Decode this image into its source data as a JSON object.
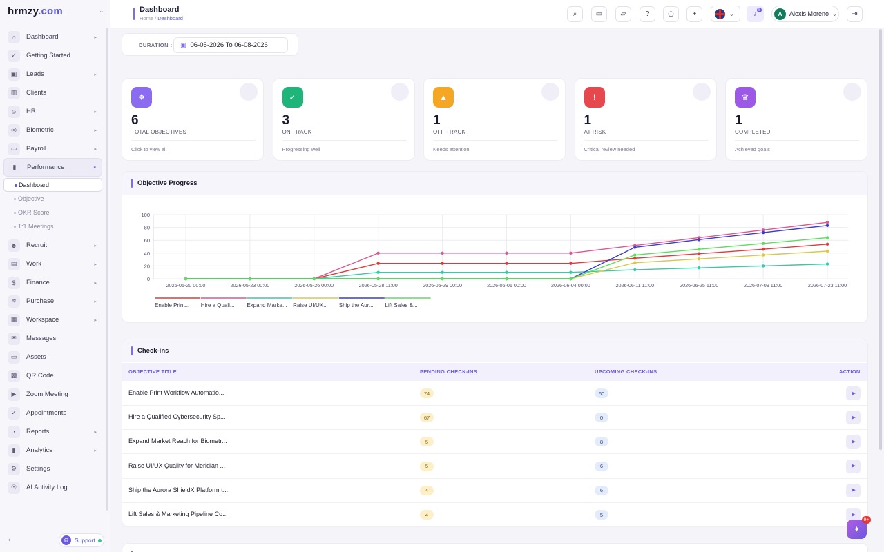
{
  "brand": {
    "name": "hrmzy",
    "domain": ".com"
  },
  "sidebar": {
    "items": [
      {
        "label": "Dashboard",
        "icon": "home-icon",
        "glyph": "⌂",
        "arrow": true
      },
      {
        "label": "Getting Started",
        "icon": "check-circle-icon",
        "glyph": "✓",
        "arrow": false
      },
      {
        "label": "Leads",
        "icon": "contact-card-icon",
        "glyph": "▣",
        "arrow": true
      },
      {
        "label": "Clients",
        "icon": "building-icon",
        "glyph": "▥",
        "arrow": false
      },
      {
        "label": "HR",
        "icon": "users-icon",
        "glyph": "☺",
        "arrow": true
      },
      {
        "label": "Biometric",
        "icon": "fingerprint-icon",
        "glyph": "◎",
        "arrow": true
      },
      {
        "label": "Payroll",
        "icon": "wallet-icon",
        "glyph": "▭",
        "arrow": true
      },
      {
        "label": "Performance",
        "icon": "bar-chart-icon",
        "glyph": "▮",
        "arrow": true,
        "active": true
      }
    ],
    "sub_items": [
      {
        "label": "Dashboard",
        "active": true
      },
      {
        "label": "Objective"
      },
      {
        "label": "OKR Score"
      },
      {
        "label": "1:1 Meetings"
      }
    ],
    "items_after": [
      {
        "label": "Recruit",
        "icon": "recruit-icon",
        "glyph": "☻",
        "arrow": true
      },
      {
        "label": "Work",
        "icon": "briefcase-icon",
        "glyph": "▤",
        "arrow": true
      },
      {
        "label": "Finance",
        "icon": "dollar-icon",
        "glyph": "$",
        "arrow": true
      },
      {
        "label": "Purchase",
        "icon": "layers-icon",
        "glyph": "≋",
        "arrow": true
      },
      {
        "label": "Workspace",
        "icon": "grid-icon",
        "glyph": "▦",
        "arrow": true
      },
      {
        "label": "Messages",
        "icon": "message-icon",
        "glyph": "✉",
        "arrow": false
      },
      {
        "label": "Assets",
        "icon": "monitor-icon",
        "glyph": "▭",
        "arrow": false
      },
      {
        "label": "QR Code",
        "icon": "qr-code-icon",
        "glyph": "▩",
        "arrow": false
      },
      {
        "label": "Zoom Meeting",
        "icon": "video-icon",
        "glyph": "▶",
        "arrow": false
      },
      {
        "label": "Appointments",
        "icon": "calendar-check-icon",
        "glyph": "✓",
        "arrow": false
      },
      {
        "label": "Reports",
        "icon": "pie-chart-icon",
        "glyph": "◔",
        "arrow": true
      },
      {
        "label": "Analytics",
        "icon": "analytics-icon",
        "glyph": "▮",
        "arrow": true
      },
      {
        "label": "Settings",
        "icon": "gear-icon",
        "glyph": "⚙",
        "arrow": false
      },
      {
        "label": "AI Activity Log",
        "icon": "ai-icon",
        "glyph": "☉",
        "arrow": false
      }
    ],
    "support_label": "Support"
  },
  "header": {
    "title": "Dashboard",
    "breadcrumb_home": "Home",
    "breadcrumb_current": "Dashboard",
    "user_name": "Alexis Moreno",
    "user_initial": "A",
    "notification_count": "5"
  },
  "duration": {
    "label": "DURATION :",
    "value": "06-05-2026 To 06-08-2026"
  },
  "stats": [
    {
      "value": "6",
      "label": "TOTAL OBJECTIVES",
      "sub": "Click to view all",
      "icon": "layers-icon",
      "glyph": "❖",
      "color": "#8b6cf0"
    },
    {
      "value": "3",
      "label": "ON TRACK",
      "sub": "Progressing well",
      "icon": "check-circle-icon",
      "glyph": "✓",
      "color": "#1fb57a"
    },
    {
      "value": "1",
      "label": "OFF TRACK",
      "sub": "Needs attention",
      "icon": "warning-icon",
      "glyph": "▲",
      "color": "#f5a623"
    },
    {
      "value": "1",
      "label": "AT RISK",
      "sub": "Critical review needed",
      "icon": "alert-icon",
      "glyph": "!",
      "color": "#e5484d"
    },
    {
      "value": "1",
      "label": "COMPLETED",
      "sub": "Achieved goals",
      "icon": "trophy-icon",
      "glyph": "♛",
      "color": "#9b59e6"
    }
  ],
  "chart_panel_title": "Objective Progress",
  "chart_data": {
    "type": "line",
    "categories": [
      "2026-05-20 00:00",
      "2026-05-23 00:00",
      "2026-05-26 00:00",
      "2026-05-28 11:00",
      "2026-05-29 00:00",
      "2026-06-01 00:00",
      "2026-06-04 00:00",
      "2026-06-11 11:00",
      "2026-06-25 11:00",
      "2026-07-09 11:00",
      "2026-07-23 11:00"
    ],
    "ylim": [
      0,
      100
    ],
    "yticks": [
      0,
      20,
      40,
      60,
      80,
      100
    ],
    "legend": "bottom-left",
    "grid": true,
    "series": [
      {
        "name": "Enable Print...",
        "color": "#e03a3a",
        "values": [
          0,
          0,
          0,
          24,
          24,
          24,
          24,
          32,
          39,
          46,
          54
        ]
      },
      {
        "name": "Hire a Quali...",
        "color": "#e0558e",
        "values": [
          0,
          0,
          0,
          40,
          40,
          40,
          40,
          52,
          64,
          76,
          88
        ]
      },
      {
        "name": "Expand Marke...",
        "color": "#38c9a5",
        "values": [
          0,
          0,
          0,
          10,
          10,
          10,
          10,
          14,
          17,
          20,
          23
        ]
      },
      {
        "name": "Raise UI/UX...",
        "color": "#d8c84a",
        "values": [
          0,
          0,
          0,
          0,
          0,
          0,
          0,
          25,
          31,
          37,
          43
        ]
      },
      {
        "name": "Ship the Aur...",
        "color": "#3a3ad6",
        "values": [
          0,
          0,
          0,
          0,
          0,
          0,
          0,
          49,
          61,
          72,
          83
        ]
      },
      {
        "name": "Lift Sales &...",
        "color": "#5ae05a",
        "values": [
          0,
          0,
          0,
          0,
          0,
          0,
          0,
          37,
          46,
          55,
          64
        ]
      }
    ]
  },
  "checkins": {
    "title": "Check-ins",
    "headers": [
      "OBJECTIVE TITLE",
      "PENDING CHECK-INS",
      "UPCOMING CHECK-INS",
      "ACTION"
    ],
    "rows": [
      {
        "title": "Enable Print Workflow Automatio...",
        "pending": "74",
        "upcoming": "60"
      },
      {
        "title": "Hire a Qualified Cybersecurity Sp...",
        "pending": "67",
        "upcoming": "0"
      },
      {
        "title": "Expand Market Reach for Biometr...",
        "pending": "5",
        "upcoming": "8"
      },
      {
        "title": "Raise UI/UX Quality for Meridian ...",
        "pending": "5",
        "upcoming": "6"
      },
      {
        "title": "Ship the Aurora ShieldX Platform t...",
        "pending": "4",
        "upcoming": "6"
      },
      {
        "title": "Lift Sales & Marketing Pipeline Co...",
        "pending": "4",
        "upcoming": "5"
      }
    ]
  },
  "fab_badge": "9+"
}
